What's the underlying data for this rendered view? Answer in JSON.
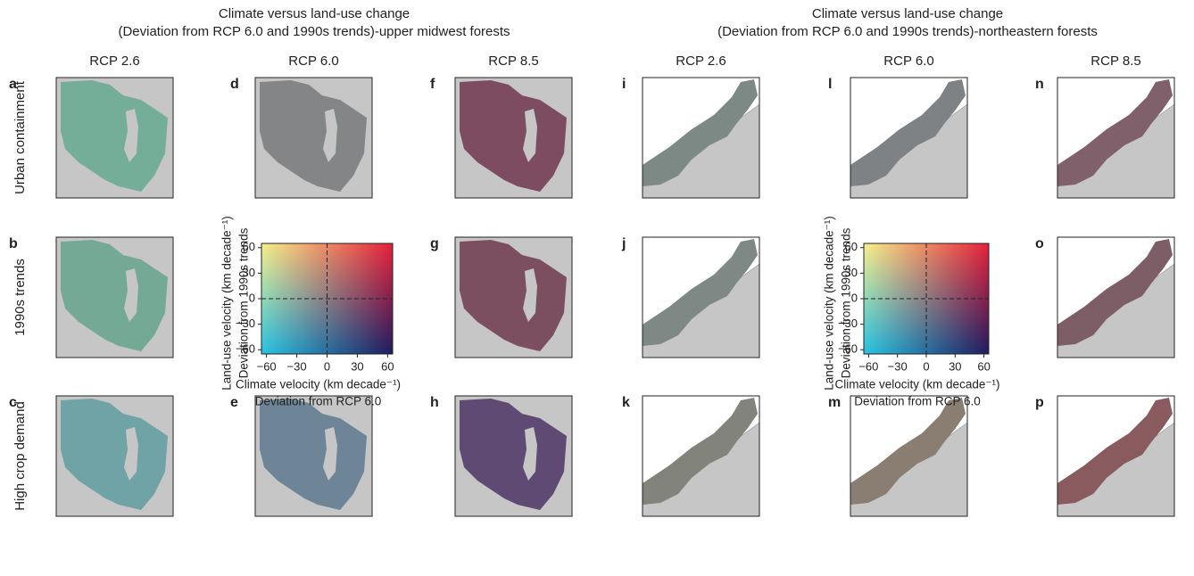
{
  "groups": [
    {
      "title": [
        "Climate versus land-use change",
        "(Deviation from RCP 6.0 and 1990s trends)-upper midwest forests"
      ],
      "columns": [
        "RCP 2.6",
        "RCP 6.0",
        "RCP 8.5"
      ],
      "panels": [
        [
          "a",
          "d",
          "f"
        ],
        [
          "b",
          "g"
        ],
        [
          "c",
          "e",
          "h"
        ]
      ],
      "legend": {
        "xlabel": [
          "Climate velocity (km decade⁻¹)",
          "Deviation from RCP 6.0"
        ],
        "ylabel": [
          "Land-use velocity (km decade⁻¹)",
          "Deviation from 1990s trends"
        ],
        "xlim": [
          -65,
          65
        ],
        "ylim": [
          -65,
          65
        ],
        "xticks": [
          {
            "value": -60,
            "label": "−60"
          },
          {
            "value": -30,
            "label": "−30"
          },
          0,
          30,
          60
        ],
        "yticks": [
          {
            "value": -60,
            "label": "−60"
          },
          {
            "value": -30,
            "label": "−30"
          },
          0,
          30,
          60
        ]
      }
    },
    {
      "title": [
        "Climate versus land-use change",
        "(Deviation from RCP 6.0 and 1990s trends)-northeastern forests"
      ],
      "columns": [
        "RCP 2.6",
        "RCP 6.0",
        "RCP 8.5"
      ],
      "panels": [
        [
          "i",
          "l",
          "n"
        ],
        [
          "j",
          "o"
        ],
        [
          "k",
          "m",
          "p"
        ]
      ],
      "legend": {
        "xlabel": [
          "Climate velocity (km decade⁻¹)",
          "Deviation from RCP 6.0"
        ],
        "ylabel": [
          "Land-use velocity (km decade⁻¹)",
          "Deviation from 1990s trends"
        ],
        "xlim": [
          -65,
          65
        ],
        "ylim": [
          -65,
          65
        ],
        "xticks": [
          {
            "value": -60,
            "label": "−60"
          },
          {
            "value": -30,
            "label": "−30"
          },
          0,
          30,
          60
        ],
        "yticks": [
          {
            "value": -60,
            "label": "−60"
          },
          {
            "value": -30,
            "label": "−30"
          },
          0,
          30,
          60
        ]
      }
    }
  ],
  "row_labels": [
    "Urban containment",
    "1990s trends",
    "High crop demand"
  ]
}
